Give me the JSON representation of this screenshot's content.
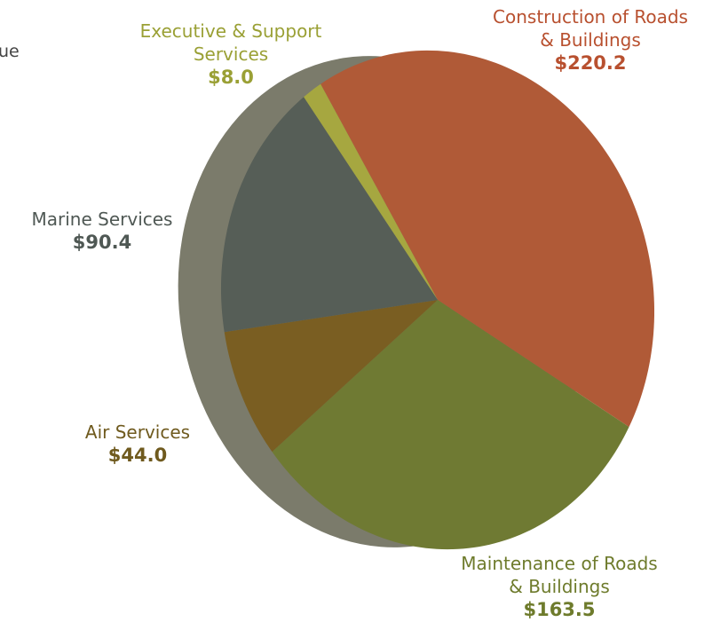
{
  "chart_data": {
    "type": "pie",
    "unit_prefix": "$",
    "slices": [
      {
        "name": "Construction of Roads & Buildings",
        "name_lines": [
          "Construction of Roads",
          "& Buildings"
        ],
        "value_label": "$220.2",
        "value": 220.2,
        "color": "#b05a37"
      },
      {
        "name": "Maintenance of Roads & Buildings",
        "name_lines": [
          "Maintenance of Roads",
          "& Buildings"
        ],
        "value_label": "$163.5",
        "value": 163.5,
        "color": "#6f7a33"
      },
      {
        "name": "Air Services",
        "name_lines": [
          "Air Services"
        ],
        "value_label": "$44.0",
        "value": 44.0,
        "color": "#7a5e22"
      },
      {
        "name": "Marine Services",
        "name_lines": [
          "Marine Services"
        ],
        "value_label": "$90.4",
        "value": 90.4,
        "color": "#565e57"
      },
      {
        "name": "Executive & Support Services",
        "name_lines": [
          "Executive & Support",
          "Services"
        ],
        "value_label": "$8.0",
        "value": 8.0,
        "color": "#a6a740"
      }
    ],
    "label_colors": {
      "Construction of Roads & Buildings": "#b8502f",
      "Maintenance of Roads & Buildings": "#6e7b2c",
      "Air Services": "#6f5a1e",
      "Marine Services": "#4f5854",
      "Executive & Support Services": "#9aa035"
    },
    "shadow_color": "#7b7b6b",
    "legend": "none"
  },
  "partial_text": "ue"
}
